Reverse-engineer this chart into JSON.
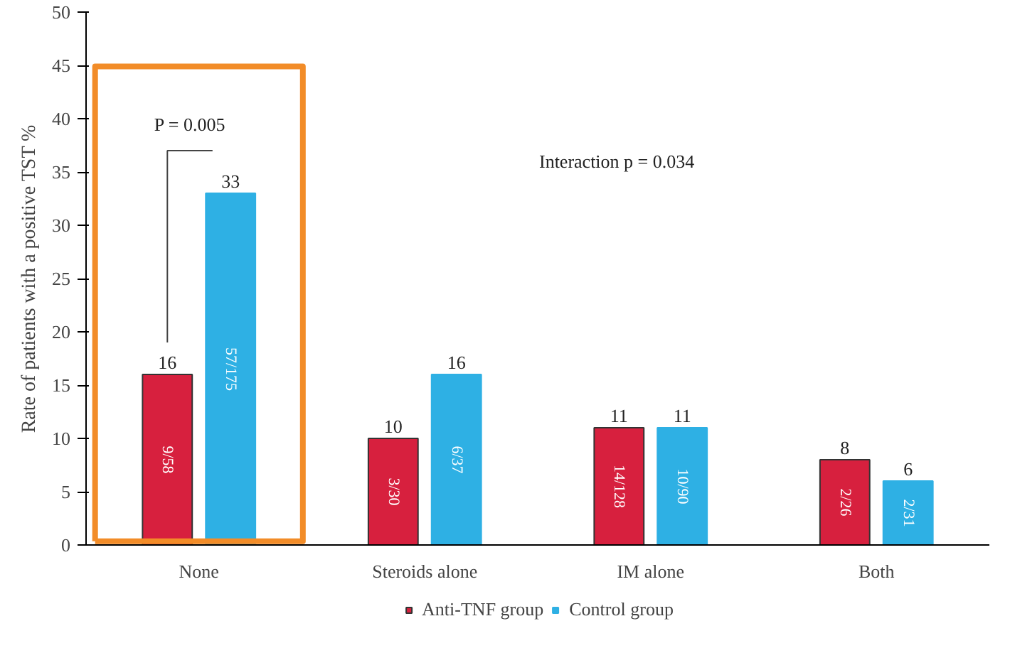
{
  "chart_data": {
    "type": "bar",
    "ylabel": "Rate of patients with a positive TST %",
    "categories": [
      "None",
      "Steroids alone",
      "IM alone",
      "Both"
    ],
    "series": [
      {
        "name": "Anti-TNF group",
        "color": "#d7203e",
        "values": [
          16,
          10,
          11,
          8
        ],
        "value_labels": [
          "16",
          "10",
          "11",
          "8"
        ]
      },
      {
        "name": "Control group",
        "color": "#2eb0e4",
        "values": [
          33,
          16,
          11,
          6
        ],
        "value_labels": [
          "33",
          "16",
          "11",
          "6"
        ]
      }
    ],
    "ylim": [
      0,
      50
    ],
    "yticks": [
      0,
      5,
      10,
      15,
      20,
      25,
      30,
      35,
      40,
      45,
      50
    ],
    "annotations": [
      "P = 0.005",
      "Interaction p = 0.034",
      {
        "text": "9/58",
        "x": "None",
        "y": 8
      },
      {
        "text": "3/30",
        "x": "Steroids alone",
        "y": 5
      },
      {
        "text": "14/128",
        "x": "IM alone",
        "y": 5.5
      },
      {
        "text": "2/26",
        "x": "Both",
        "y": 4
      },
      {
        "text": "57/175",
        "x": "None",
        "y": 16.5
      },
      {
        "text": "6/37",
        "x": "Steroids alone",
        "y": 8
      },
      {
        "text": "10/90",
        "x": "IM alone",
        "y": 5.5
      },
      {
        "text": "2/31",
        "x": "Both",
        "y": 3
      }
    ],
    "legend": "bottom",
    "grid": false
  }
}
